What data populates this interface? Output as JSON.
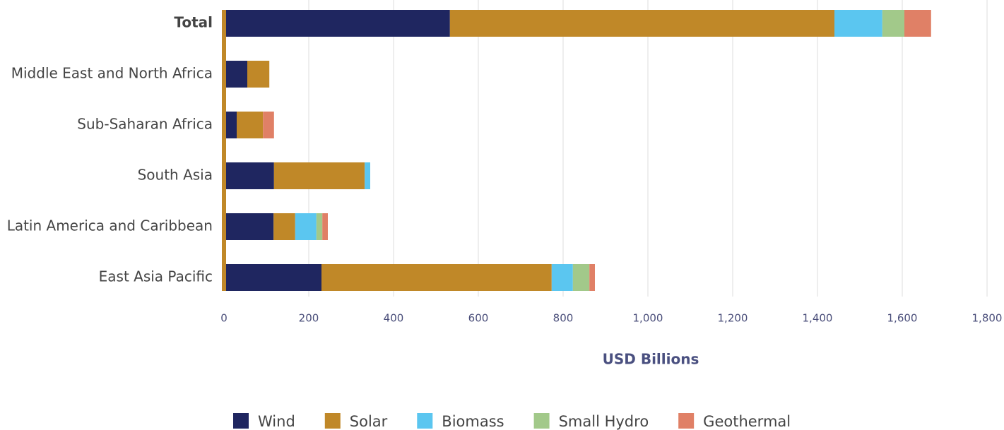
{
  "chart_data": {
    "type": "stacked-barh",
    "categories": [
      "Total",
      "Middle East and North Africa",
      "Sub-Saharan Africa",
      "South Asia",
      "Latin America and Caribbean",
      "East Asia Pacific"
    ],
    "series": [
      {
        "name": "Wind",
        "color": "#1f2660",
        "values": [
          528,
          50,
          25,
          113,
          112,
          225
        ]
      },
      {
        "name": "Solar",
        "color": "#c08828",
        "values": [
          907,
          52,
          62,
          214,
          51,
          543
        ]
      },
      {
        "name": "Biomass",
        "color": "#5bc6f0",
        "values": [
          113,
          null,
          null,
          13,
          50,
          50
        ]
      },
      {
        "name": "Small Hydro",
        "color": "#a2c98a",
        "values": [
          52,
          null,
          null,
          null,
          14,
          39
        ]
      },
      {
        "name": "Geothermal",
        "color": "#e08066",
        "values": [
          63,
          null,
          26,
          null,
          13,
          13
        ]
      }
    ],
    "xlabel": "USD Billions",
    "xlim": [
      0,
      1800
    ],
    "xticks": [
      0,
      200,
      400,
      600,
      800,
      {
        "value": 1000,
        "label": "1,000"
      },
      {
        "value": 1200,
        "label": "1,200"
      },
      {
        "value": 1400,
        "label": "1,400"
      },
      {
        "value": 1600,
        "label": "1,600"
      },
      {
        "value": 1800,
        "label": "1,800"
      }
    ],
    "grid": true,
    "legend": "bottom"
  }
}
